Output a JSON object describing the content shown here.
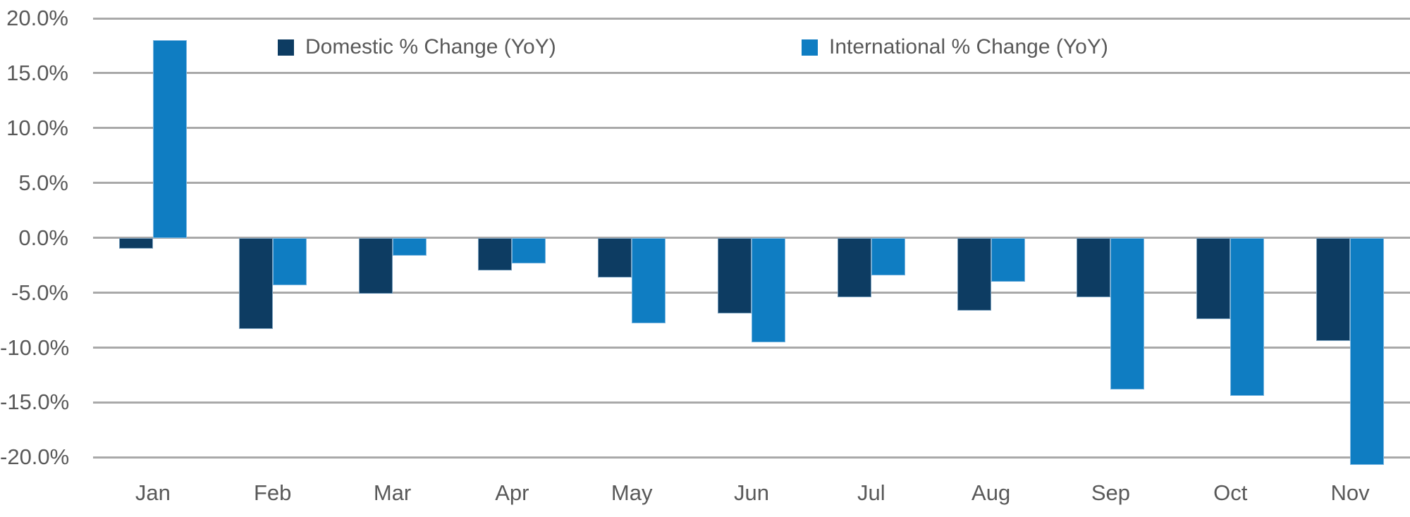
{
  "chart_data": {
    "type": "bar",
    "title": "",
    "xlabel": "",
    "ylabel": "",
    "categories": [
      "Jan",
      "Feb",
      "Mar",
      "Apr",
      "May",
      "Jun",
      "Jul",
      "Aug",
      "Sep",
      "Oct",
      "Nov"
    ],
    "series": [
      {
        "name": "Domestic % Change (YoY)",
        "color": "#0d3c62",
        "values": [
          -1.0,
          -8.3,
          -5.1,
          -3.0,
          -3.6,
          -6.9,
          -5.4,
          -6.6,
          -5.4,
          -7.4,
          -9.4
        ]
      },
      {
        "name": "International % Change (YoY)",
        "color": "#0f7dc2",
        "values": [
          18.0,
          -4.3,
          -1.6,
          -2.3,
          -7.8,
          -9.5,
          -3.4,
          -4.0,
          -13.8,
          -14.4,
          -20.7
        ]
      }
    ],
    "ylim": [
      -21,
      20
    ],
    "yticks": [
      {
        "value": 20,
        "label": "20.0%"
      },
      {
        "value": 15,
        "label": "15.0%"
      },
      {
        "value": 10,
        "label": "10.0%"
      },
      {
        "value": 5,
        "label": "5.0%"
      },
      {
        "value": 0,
        "label": "0.0%"
      },
      {
        "value": -5,
        "label": "-5.0%"
      },
      {
        "value": -10,
        "label": "-10.0%"
      },
      {
        "value": -15,
        "label": "-15.0%"
      },
      {
        "value": -20,
        "label": "-20.0%"
      }
    ],
    "grid": true,
    "legend_position": "top-inside"
  },
  "colors": {
    "background": "#ffffff",
    "grid": "#a9a9a9",
    "axis_text": "#595959"
  }
}
